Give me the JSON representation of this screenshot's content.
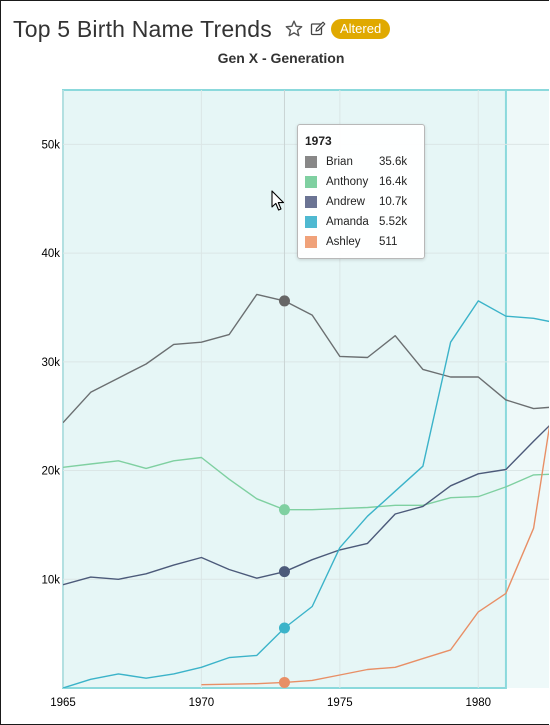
{
  "header": {
    "title": "Top 5 Birth Name Trends",
    "badge": "Altered",
    "badge_color": "#e0a900",
    "star_icon": "star-outline-icon",
    "edit_icon": "edit-icon"
  },
  "tooltip": {
    "title": "1973",
    "rows": [
      {
        "name": "Brian",
        "value": "35.6k",
        "color": "#888888"
      },
      {
        "name": "Anthony",
        "value": "16.4k",
        "color": "#7fd0a1"
      },
      {
        "name": "Andrew",
        "value": "10.7k",
        "color": "#6b7494"
      },
      {
        "name": "Amanda",
        "value": "5.52k",
        "color": "#4fb9d1"
      },
      {
        "name": "Ashley",
        "value": "511",
        "color": "#f0a27a"
      }
    ]
  },
  "chart_data": {
    "type": "line",
    "title": "Gen X - Generation",
    "xlabel": "",
    "ylabel": "",
    "x_ticks": [
      "1965",
      "1970",
      "1975",
      "1980"
    ],
    "y_ticks": [
      "10k",
      "20k",
      "30k",
      "40k",
      "50k"
    ],
    "ylim": [
      0,
      55000
    ],
    "xlim": [
      1965,
      1982.7
    ],
    "grid": true,
    "highlighted_x": 1973,
    "shaded_region": [
      1965,
      1981
    ],
    "x": [
      1965,
      1966,
      1967,
      1968,
      1969,
      1970,
      1971,
      1972,
      1973,
      1974,
      1975,
      1976,
      1977,
      1978,
      1979,
      1980,
      1981,
      1982,
      1983
    ],
    "series": [
      {
        "name": "Brian",
        "color": "#6b6f71",
        "marker_color": "#666666",
        "values": [
          24400,
          27200,
          28500,
          29800,
          31600,
          31800,
          32500,
          36200,
          35600,
          34300,
          30500,
          30400,
          32400,
          29300,
          28600,
          28600,
          26500,
          25700,
          25900
        ]
      },
      {
        "name": "Anthony",
        "color": "#7fd0a1",
        "marker_color": "#7fd0a1",
        "values": [
          20300,
          20600,
          20900,
          20200,
          20900,
          21200,
          19200,
          17400,
          16400,
          16400,
          16500,
          16600,
          16800,
          16800,
          17500,
          17600,
          18500,
          19600,
          19700
        ]
      },
      {
        "name": "Andrew",
        "color": "#4c5a7a",
        "marker_color": "#4c5a7a",
        "values": [
          9500,
          10200,
          10000,
          10500,
          11300,
          12000,
          10900,
          10100,
          10700,
          11800,
          12700,
          13300,
          16000,
          16700,
          18600,
          19700,
          20100,
          22700,
          25200
        ]
      },
      {
        "name": "Amanda",
        "color": "#3bb3c9",
        "marker_color": "#3bb3c9",
        "values": [
          0,
          800,
          1300,
          900,
          1300,
          1900,
          2800,
          3000,
          5520,
          7500,
          12900,
          15800,
          18100,
          20400,
          31800,
          35600,
          34200,
          34000,
          33500
        ]
      },
      {
        "name": "Ashley",
        "color": "#e88f66",
        "marker_color": "#e88f66",
        "values": [
          null,
          null,
          null,
          null,
          null,
          300,
          350,
          400,
          511,
          700,
          1200,
          1700,
          1900,
          2700,
          3500,
          7000,
          8700,
          14700,
          31000
        ]
      }
    ]
  }
}
